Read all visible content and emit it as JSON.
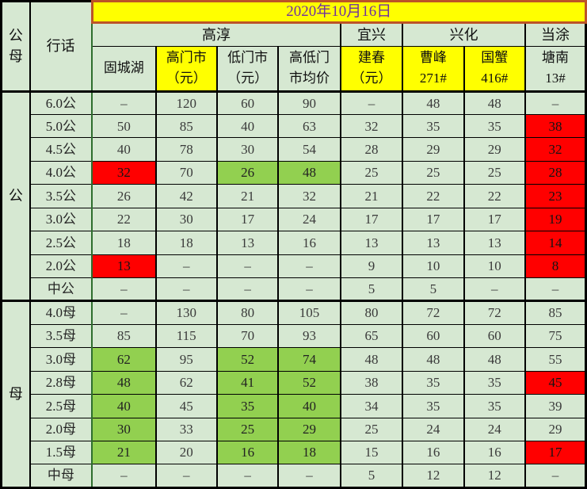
{
  "colors": {
    "cell_bg": "#d6e8d2",
    "highlight_green": "#92d050",
    "highlight_red": "#ff0000",
    "header_yellow": "#ffff00",
    "date_text_purple": "#7030a0",
    "banner_border": "#bc5427",
    "grid_border": "#000000",
    "spec_divider_green": "#2e6e2e"
  },
  "table": {
    "corner_header": "公母",
    "spec_header": "行话",
    "date_banner": "2020年10月16日",
    "region_groups": [
      {
        "id": "gaochun",
        "label": "高淳",
        "span": 4
      },
      {
        "id": "yixing",
        "label": "宜兴",
        "span": 1
      },
      {
        "id": "xinghua",
        "label": "兴化",
        "span": 2
      },
      {
        "id": "dangtu",
        "label": "当涂",
        "span": 1
      }
    ],
    "column_headers": [
      {
        "id": "guchenghu",
        "label": "固城湖"
      },
      {
        "id": "high-retail",
        "label": "高门市\n（元）",
        "bg": "yellow"
      },
      {
        "id": "low-retail",
        "label": "低门市\n（元）"
      },
      {
        "id": "avg-retail",
        "label": "高低门\n市均价"
      },
      {
        "id": "jianchun",
        "label": "建春\n（元）",
        "bg": "yellow"
      },
      {
        "id": "caofeng",
        "label": "曹峰\n271#",
        "bg": "yellow"
      },
      {
        "id": "guoxie",
        "label": "国蟹\n416#",
        "bg": "yellow"
      },
      {
        "id": "tangnan",
        "label": "塘南\n13#"
      }
    ],
    "sections": [
      {
        "id": "male",
        "label": "公",
        "rows": [
          {
            "spec": "6.0公",
            "cells": [
              "–",
              "120",
              "60",
              "90",
              "–",
              "48",
              "48",
              "–"
            ]
          },
          {
            "spec": "5.0公",
            "cells": [
              "50",
              "85",
              "40",
              "63",
              "32",
              "35",
              "35",
              {
                "v": "38",
                "bg": "red"
              }
            ]
          },
          {
            "spec": "4.5公",
            "cells": [
              "40",
              "78",
              "30",
              "54",
              "28",
              "29",
              "29",
              {
                "v": "32",
                "bg": "red"
              }
            ]
          },
          {
            "spec": "4.0公",
            "cells": [
              {
                "v": "32",
                "bg": "red"
              },
              "70",
              {
                "v": "26",
                "bg": "green"
              },
              {
                "v": "48",
                "bg": "green"
              },
              "25",
              "25",
              "25",
              {
                "v": "28",
                "bg": "red"
              }
            ]
          },
          {
            "spec": "3.5公",
            "cells": [
              "26",
              "42",
              "21",
              "32",
              "21",
              "22",
              "22",
              {
                "v": "23",
                "bg": "red"
              }
            ]
          },
          {
            "spec": "3.0公",
            "cells": [
              "22",
              "30",
              "17",
              "24",
              "17",
              "17",
              "17",
              {
                "v": "19",
                "bg": "red"
              }
            ]
          },
          {
            "spec": "2.5公",
            "cells": [
              "18",
              "18",
              "13",
              "16",
              "13",
              "13",
              "13",
              {
                "v": "14",
                "bg": "red"
              }
            ]
          },
          {
            "spec": "2.0公",
            "cells": [
              {
                "v": "13",
                "bg": "red"
              },
              "–",
              "–",
              "–",
              "9",
              "10",
              "10",
              {
                "v": "8",
                "bg": "red"
              }
            ]
          },
          {
            "spec": "中公",
            "cells": [
              "–",
              "–",
              "–",
              "–",
              "5",
              "5",
              "–",
              "–"
            ]
          }
        ]
      },
      {
        "id": "female",
        "label": "母",
        "rows": [
          {
            "spec": "4.0母",
            "cells": [
              "–",
              "130",
              "80",
              "105",
              "80",
              "72",
              "72",
              "85"
            ]
          },
          {
            "spec": "3.5母",
            "cells": [
              "85",
              "115",
              "70",
              "93",
              "65",
              "60",
              "60",
              "75"
            ]
          },
          {
            "spec": "3.0母",
            "cells": [
              {
                "v": "62",
                "bg": "green"
              },
              "95",
              {
                "v": "52",
                "bg": "green"
              },
              {
                "v": "74",
                "bg": "green"
              },
              "48",
              "48",
              "48",
              "55"
            ]
          },
          {
            "spec": "2.8母",
            "cells": [
              {
                "v": "48",
                "bg": "green"
              },
              "62",
              {
                "v": "41",
                "bg": "green"
              },
              {
                "v": "52",
                "bg": "green"
              },
              "38",
              "35",
              "35",
              {
                "v": "45",
                "bg": "red"
              }
            ]
          },
          {
            "spec": "2.5母",
            "cells": [
              {
                "v": "40",
                "bg": "green"
              },
              "45",
              {
                "v": "35",
                "bg": "green"
              },
              {
                "v": "40",
                "bg": "green"
              },
              "34",
              "35",
              "35",
              "39"
            ]
          },
          {
            "spec": "2.0母",
            "cells": [
              {
                "v": "30",
                "bg": "green"
              },
              "33",
              {
                "v": "25",
                "bg": "green"
              },
              {
                "v": "29",
                "bg": "green"
              },
              "25",
              "24",
              "24",
              "29"
            ]
          },
          {
            "spec": "1.5母",
            "cells": [
              {
                "v": "21",
                "bg": "green"
              },
              "20",
              {
                "v": "16",
                "bg": "green"
              },
              {
                "v": "18",
                "bg": "green"
              },
              "15",
              "16",
              "16",
              {
                "v": "17",
                "bg": "red"
              }
            ]
          },
          {
            "spec": "中母",
            "cells": [
              "–",
              "–",
              "–",
              "–",
              "5",
              "12",
              "12",
              "–"
            ]
          }
        ]
      }
    ]
  }
}
